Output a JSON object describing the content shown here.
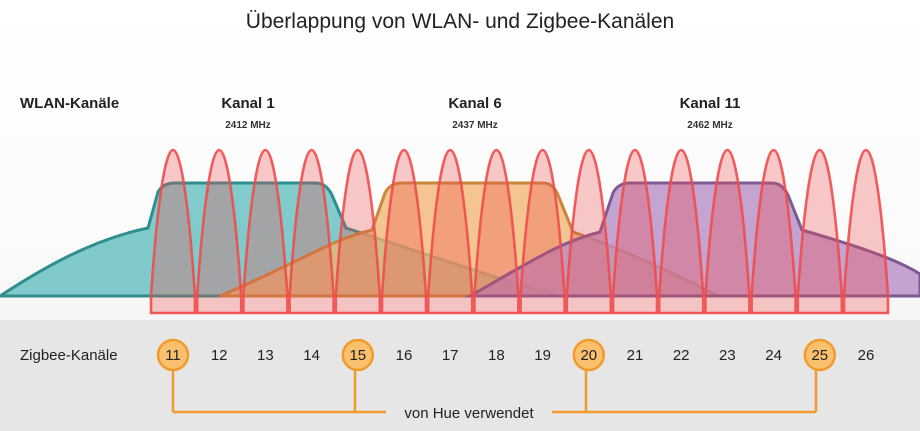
{
  "title": "Überlappung von WLAN- und Zigbee-Kanälen",
  "wlan_label": "WLAN-Kanäle",
  "zigbee_label": "Zigbee-Kanäle",
  "hue_label": "von Hue verwendet",
  "wlan_channels": [
    {
      "name": "Kanal 1",
      "freq": "2412 MHz",
      "color": "#5fbcbf",
      "stroke": "#2f8f8f"
    },
    {
      "name": "Kanal 6",
      "freq": "2437 MHz",
      "color": "#f2b36e",
      "stroke": "#c8873a"
    },
    {
      "name": "Kanal 11",
      "freq": "2462 MHz",
      "color": "#b58ac4",
      "stroke": "#7e5a94"
    }
  ],
  "zigbee_channels": [
    "11",
    "12",
    "13",
    "14",
    "15",
    "16",
    "17",
    "18",
    "19",
    "20",
    "21",
    "22",
    "23",
    "24",
    "25",
    "26"
  ],
  "hue_channels": [
    "11",
    "15",
    "20",
    "25"
  ],
  "colors": {
    "zigbee": "#ee4d4d",
    "hue_ring": "#f39a2d",
    "hue_fill": "#f9c06d",
    "title": "#222222",
    "bottom_band": "#e6e6e6"
  }
}
